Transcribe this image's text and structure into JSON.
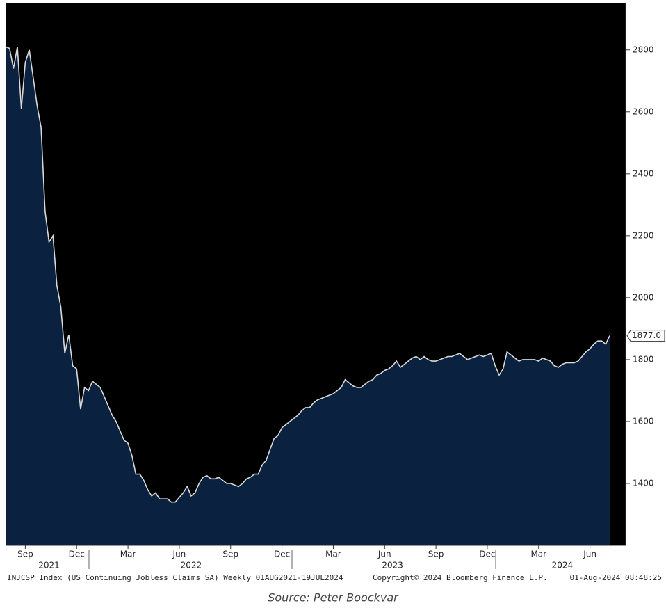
{
  "chart_data": {
    "type": "area",
    "footer_left": "INJCSP Index (US Continuing Jobless Claims SA) Weekly 01AUG2021-19JUL2024",
    "footer_center": "Copyright© 2024 Bloomberg Finance L.P.",
    "footer_right": "01-Aug-2024 08:48:25",
    "caption": "Source: Peter Boockvar",
    "last_value_label": "1877.0",
    "line_color": "#d9d9d9",
    "fill_color": "#0b2140",
    "background": "#000000",
    "xlim": [
      0,
      153
    ],
    "xticks": [
      {
        "value": 5,
        "label": "Sep"
      },
      {
        "value": 18,
        "label": "Dec"
      },
      {
        "value": 31,
        "label": "Mar"
      },
      {
        "value": 44,
        "label": "Jun"
      },
      {
        "value": 57,
        "label": "Sep"
      },
      {
        "value": 70,
        "label": "Dec"
      },
      {
        "value": 83,
        "label": "Mar"
      },
      {
        "value": 96,
        "label": "Jun"
      },
      {
        "value": 109,
        "label": "Sep"
      },
      {
        "value": 122,
        "label": "Dec"
      },
      {
        "value": 135,
        "label": "Mar"
      },
      {
        "value": 148,
        "label": "Jun"
      }
    ],
    "year_ticks": [
      {
        "value": 11,
        "label": "2021"
      },
      {
        "value": 47,
        "label": "2022"
      },
      {
        "value": 98,
        "label": "2023"
      },
      {
        "value": 141,
        "label": "2024"
      }
    ],
    "ylim": [
      1200,
      2950
    ],
    "yticks": [
      1400,
      1600,
      1800,
      2000,
      2200,
      2400,
      2600,
      2800
    ],
    "values": [
      2810,
      2805,
      2740,
      2810,
      2610,
      2760,
      2800,
      2710,
      2620,
      2550,
      2280,
      2180,
      2200,
      2040,
      1970,
      1820,
      1880,
      1780,
      1770,
      1640,
      1710,
      1700,
      1730,
      1720,
      1710,
      1680,
      1650,
      1620,
      1600,
      1570,
      1540,
      1530,
      1490,
      1430,
      1430,
      1410,
      1380,
      1360,
      1370,
      1350,
      1350,
      1350,
      1340,
      1340,
      1355,
      1370,
      1390,
      1360,
      1370,
      1400,
      1420,
      1425,
      1415,
      1415,
      1420,
      1410,
      1400,
      1400,
      1395,
      1390,
      1400,
      1415,
      1420,
      1430,
      1430,
      1460,
      1475,
      1510,
      1545,
      1555,
      1580,
      1590,
      1600,
      1610,
      1620,
      1635,
      1645,
      1645,
      1660,
      1670,
      1675,
      1680,
      1685,
      1690,
      1700,
      1710,
      1735,
      1725,
      1715,
      1710,
      1710,
      1720,
      1730,
      1735,
      1750,
      1755,
      1765,
      1770,
      1780,
      1795,
      1775,
      1785,
      1795,
      1805,
      1810,
      1800,
      1810,
      1800,
      1795,
      1795,
      1800,
      1805,
      1810,
      1810,
      1815,
      1820,
      1810,
      1800,
      1805,
      1810,
      1815,
      1810,
      1815,
      1820,
      1780,
      1750,
      1770,
      1825,
      1815,
      1805,
      1795,
      1800,
      1800,
      1800,
      1800,
      1795,
      1805,
      1800,
      1795,
      1780,
      1775,
      1785,
      1790,
      1790,
      1790,
      1795,
      1810,
      1825,
      1835,
      1850,
      1860,
      1860,
      1850,
      1877
    ]
  }
}
